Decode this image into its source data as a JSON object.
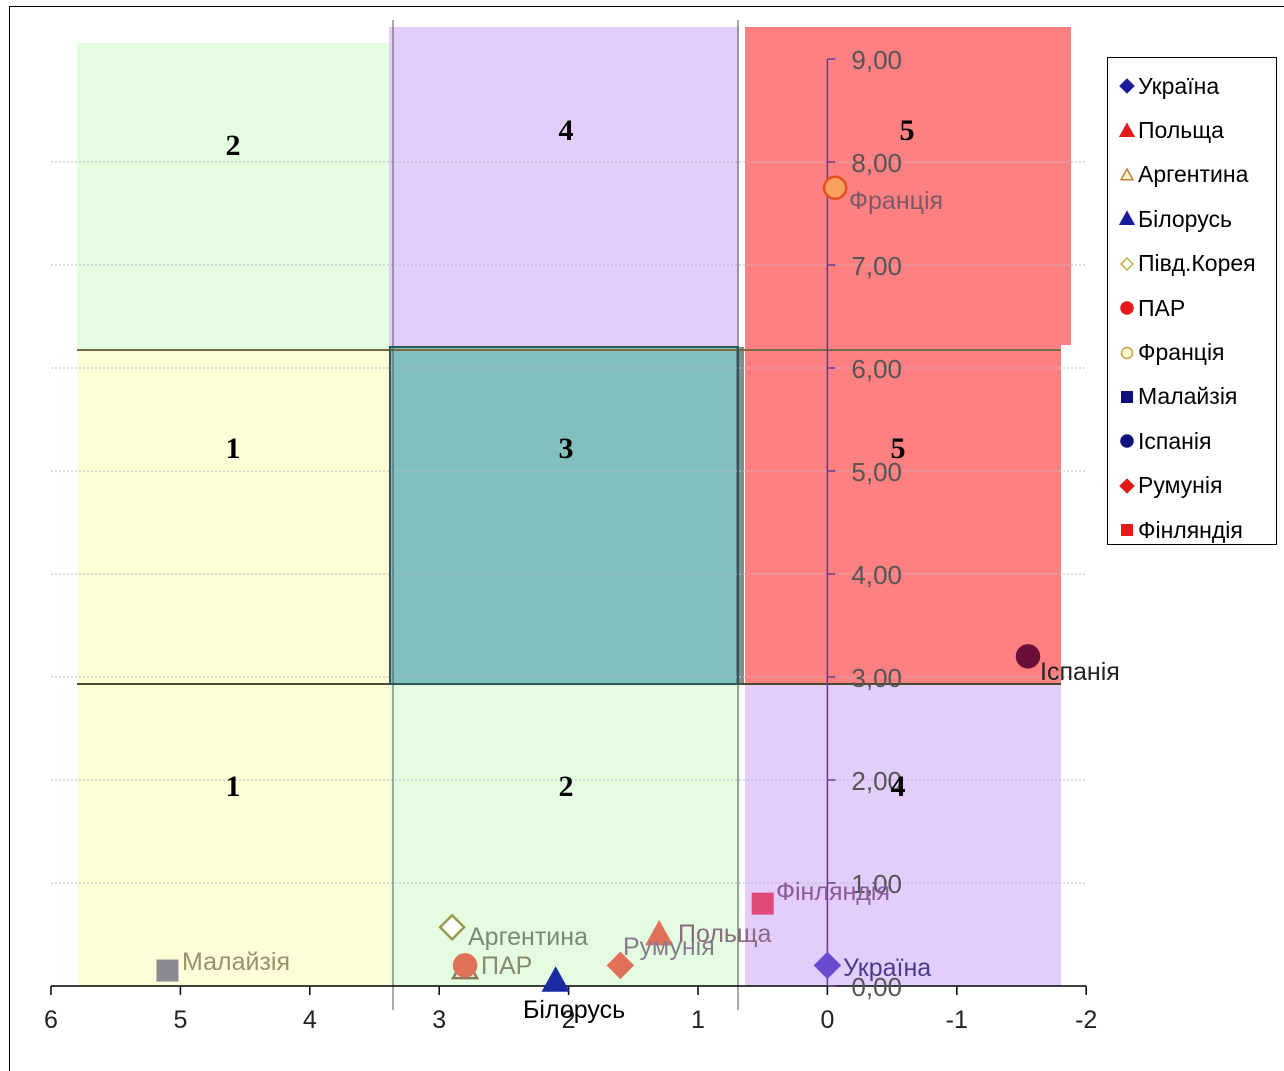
{
  "chart_data": {
    "type": "scatter",
    "xlim": [
      6,
      -2
    ],
    "ylim": [
      0,
      9
    ],
    "x_ticks": [
      "6",
      "5",
      "4",
      "3",
      "2",
      "1",
      "0",
      "-1",
      "-2"
    ],
    "y_ticks": [
      "0,00",
      "1,00",
      "2,00",
      "3,00",
      "4,00",
      "5,00",
      "6,00",
      "7,00",
      "8,00",
      "9,00"
    ],
    "grid": "horizontal dotted",
    "legend_position": "right",
    "zone_labels": [
      "2",
      "4",
      "5",
      "1",
      "3",
      "5",
      "1",
      "2",
      "4"
    ],
    "series": [
      {
        "name": "Україна",
        "marker": "diamond",
        "color": "#6a4bd0",
        "legend_color": "#1a1a9a",
        "x": 0.0,
        "y": 0.2
      },
      {
        "name": "Польща",
        "marker": "triangle",
        "color": "#e07058",
        "legend_color": "#e21a1a",
        "x": 1.3,
        "y": 0.5
      },
      {
        "name": "Аргентина",
        "marker": "triangle-open",
        "color": "#8a7a60",
        "legend_color": "#c08040",
        "x": 2.8,
        "y": 0.17
      },
      {
        "name": "Білорусь",
        "marker": "triangle",
        "color": "#1a2aa0",
        "legend_color": "#1a1aa0",
        "x": 2.1,
        "y": 0.05
      },
      {
        "name": "Півд.Корея",
        "marker": "diamond-open",
        "color": "#9a9a50",
        "legend_color": "#c0b040",
        "x": 2.9,
        "y": 0.57
      },
      {
        "name": "ПАР",
        "marker": "circle",
        "color": "#e07058",
        "legend_color": "#e21a1a",
        "x": 2.8,
        "y": 0.2
      },
      {
        "name": "Франція",
        "marker": "circle-open",
        "color": "#f08850",
        "legend_color": "#e8c060",
        "x": -0.06,
        "y": 7.75
      },
      {
        "name": "Малайзія",
        "marker": "square",
        "color": "#8a8890",
        "legend_color": "#10107a",
        "x": 5.1,
        "y": 0.15
      },
      {
        "name": "Іспанія",
        "marker": "circle",
        "color": "#6a1038",
        "legend_color": "#10107a",
        "x": -1.55,
        "y": 3.2
      },
      {
        "name": "Румунія",
        "marker": "diamond",
        "color": "#e07058",
        "legend_color": "#e21a1a",
        "x": 1.6,
        "y": 0.2
      },
      {
        "name": "Фінляндія",
        "marker": "square",
        "color": "#e04a78",
        "legend_color": "#e21a1a",
        "x": 0.5,
        "y": 0.8
      }
    ],
    "point_labels": {
      "Україна": "Україна",
      "Польща": "Польща",
      "Аргентина": "Аргентина",
      "Білорусь": "Білорусь",
      "ПАР": "ПАР",
      "Франція": "Франція",
      "Малайзія": "Малайзія",
      "Іспанія": "Іспанія",
      "Румунія": "Румунія",
      "Фінляндія": "Фінляндія"
    }
  },
  "colors": {
    "zone_green": "#e4fde0",
    "zone_yellow": "#fdfdd6",
    "zone_purple": "#e3cdfd",
    "zone_teal": "#82bfbf",
    "zone_red": "#ff8080"
  }
}
